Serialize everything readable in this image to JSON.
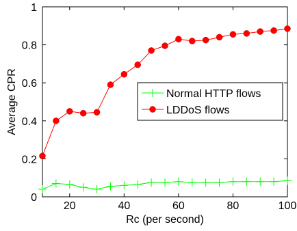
{
  "chart_data": {
    "type": "line",
    "xlabel": "Rc (per second)",
    "ylabel": "Average CPR",
    "xlim": [
      10,
      100
    ],
    "ylim": [
      0,
      1
    ],
    "xticks": [
      20,
      40,
      60,
      80,
      100
    ],
    "yticks": [
      0,
      0.2,
      0.4,
      0.6,
      0.8,
      1
    ],
    "xtick_labels": [
      "20",
      "40",
      "60",
      "80",
      "100"
    ],
    "ytick_labels": [
      "0",
      "0.2",
      "0.4",
      "0.6",
      "0.8",
      "1"
    ],
    "legend_position": "center-right",
    "grid": false,
    "series": [
      {
        "name": "Normal HTTP flows",
        "color": "#00ff00",
        "marker": "plus",
        "x": [
          10,
          15,
          20,
          25,
          30,
          35,
          40,
          45,
          50,
          55,
          60,
          65,
          70,
          75,
          80,
          85,
          90,
          95,
          100
        ],
        "y": [
          0.04,
          0.07,
          0.065,
          0.05,
          0.04,
          0.055,
          0.06,
          0.065,
          0.075,
          0.075,
          0.08,
          0.075,
          0.075,
          0.075,
          0.08,
          0.08,
          0.08,
          0.08,
          0.085
        ]
      },
      {
        "name": "LDDoS flows",
        "color": "#ff0000",
        "marker": "circle",
        "x": [
          10,
          15,
          20,
          25,
          30,
          35,
          40,
          45,
          50,
          55,
          60,
          65,
          70,
          75,
          80,
          85,
          90,
          95,
          100
        ],
        "y": [
          0.215,
          0.4,
          0.45,
          0.44,
          0.445,
          0.59,
          0.645,
          0.695,
          0.77,
          0.795,
          0.83,
          0.82,
          0.825,
          0.84,
          0.855,
          0.86,
          0.87,
          0.875,
          0.885
        ]
      }
    ]
  }
}
